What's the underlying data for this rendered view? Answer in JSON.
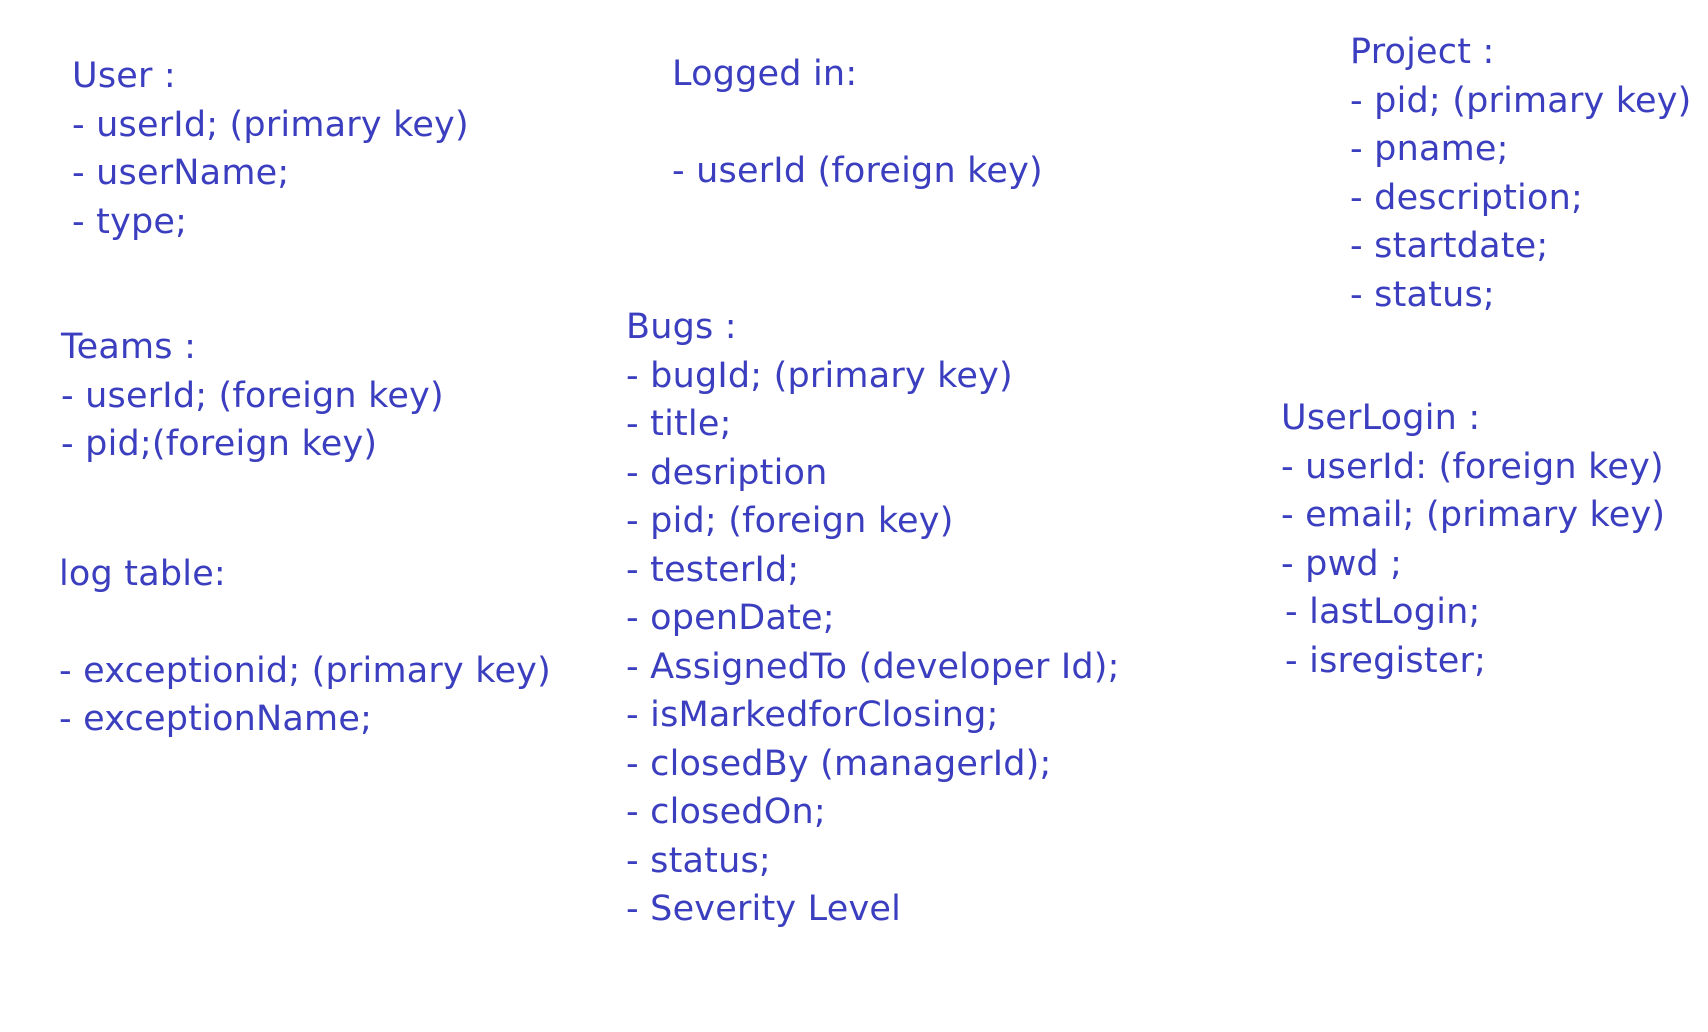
{
  "entities": {
    "user": {
      "title": "User :",
      "fields": [
        "- userId; (primary key)",
        "- userName;",
        "- type;"
      ]
    },
    "logged_in": {
      "title": "Logged in:",
      "fields": [
        "- userId (foreign key)"
      ]
    },
    "project": {
      "title": "Project :",
      "fields": [
        "- pid; (primary key)",
        "- pname;",
        "- description;",
        "- startdate;",
        "- status;"
      ]
    },
    "teams": {
      "title": "Teams :",
      "fields": [
        "- userId; (foreign key)",
        "- pid;(foreign key)"
      ]
    },
    "bugs": {
      "title": "Bugs :",
      "fields": [
        "- bugId; (primary key)",
        "- title;",
        "- desription",
        "- pid; (foreign key)",
        "- testerId;",
        "- openDate;",
        "- AssignedTo (developer Id);",
        "- isMarkedforClosing;",
        "- closedBy (managerId);",
        "- closedOn;",
        "- status;",
        "- Severity Level"
      ]
    },
    "log_table": {
      "title": "log table:",
      "fields": [
        "- exceptionid; (primary key)",
        "- exceptionName;"
      ]
    },
    "user_login": {
      "title": "UserLogin :",
      "fields": [
        "- userId: (foreign key)",
        "- email; (primary key)",
        "- pwd ;",
        "- lastLogin;",
        "- isregister;"
      ]
    }
  },
  "colors": {
    "text": "#3b3fbf",
    "background": "#ffffff"
  }
}
